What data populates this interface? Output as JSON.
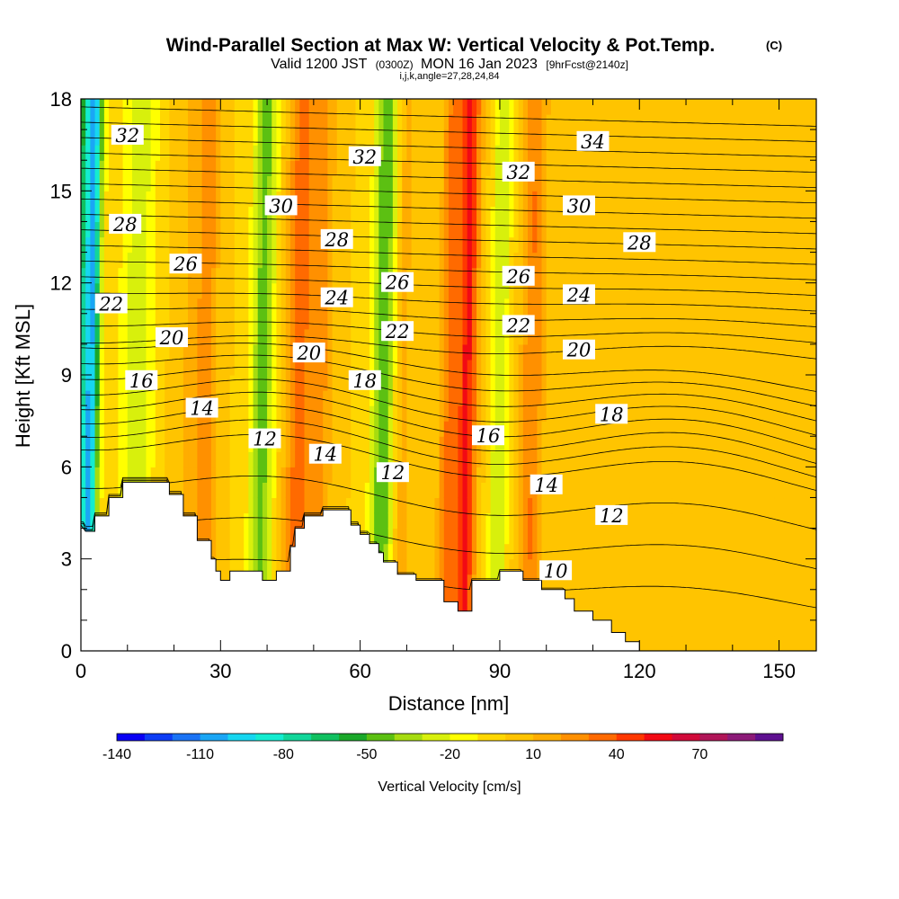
{
  "header": {
    "title": "Wind-Parallel Section at Max W: Vertical Velocity & Pot.Temp.",
    "copyright": "(C)",
    "valid_prefix": "Valid 1200 JST",
    "valid_utc": "(0300Z)",
    "valid_date": "MON 16 Jan 2023",
    "forecast_info": "[9hrFcst@2140z]",
    "grid_info": "i,j,k,angle=27,28,24,84"
  },
  "chart_data": {
    "type": "heatmap",
    "xlabel": "Distance [nm]",
    "ylabel": "Height [Kft MSL]",
    "xlim": [
      0,
      158
    ],
    "ylim": [
      0,
      18
    ],
    "x_ticks": [
      0,
      30,
      60,
      90,
      120,
      150
    ],
    "y_ticks": [
      0,
      3,
      6,
      9,
      12,
      15,
      18
    ],
    "colorbar": {
      "title": "Vertical Velocity [cm/s]",
      "levels": [
        -140,
        -130,
        -120,
        -110,
        -100,
        -90,
        -80,
        -70,
        -60,
        -50,
        -40,
        -30,
        -20,
        -10,
        0,
        10,
        20,
        30,
        40,
        50,
        60,
        70,
        80,
        90
      ],
      "tick_labels": [
        "-140",
        "-110",
        "-80",
        "-50",
        "-20",
        "10",
        "40",
        "70"
      ],
      "tick_values": [
        -140,
        -110,
        -80,
        -50,
        -20,
        10,
        40,
        70
      ],
      "colors": [
        "#0a00f5",
        "#0d3df5",
        "#1a73f5",
        "#1aa6f5",
        "#16d6f0",
        "#14ecd0",
        "#12d69a",
        "#10c060",
        "#1aa82a",
        "#5cc012",
        "#a6dc10",
        "#d8f00c",
        "#ffff00",
        "#ffd700",
        "#ffc400",
        "#ffad00",
        "#ff9000",
        "#ff6a00",
        "#ff3800",
        "#f20a14",
        "#d10a3a",
        "#b01558",
        "#8c1a78",
        "#5e1090"
      ]
    },
    "terrain_kft": [
      [
        0,
        4.1
      ],
      [
        1,
        3.9
      ],
      [
        3,
        3.9
      ],
      [
        3,
        4.4
      ],
      [
        6,
        4.4
      ],
      [
        6,
        5.0
      ],
      [
        9,
        5.0
      ],
      [
        9,
        5.5
      ],
      [
        19,
        5.5
      ],
      [
        19,
        5.1
      ],
      [
        22,
        5.1
      ],
      [
        22,
        4.4
      ],
      [
        25,
        4.4
      ],
      [
        25,
        3.6
      ],
      [
        28,
        3.6
      ],
      [
        28,
        3.0
      ],
      [
        29,
        3.0
      ],
      [
        29,
        2.6
      ],
      [
        30,
        2.6
      ],
      [
        30,
        2.3
      ],
      [
        32,
        2.3
      ],
      [
        32,
        2.6
      ],
      [
        39,
        2.6
      ],
      [
        39,
        2.3
      ],
      [
        42,
        2.3
      ],
      [
        42,
        2.6
      ],
      [
        45,
        2.6
      ],
      [
        45,
        3.4
      ],
      [
        46,
        3.4
      ],
      [
        46,
        4.0
      ],
      [
        48,
        4.0
      ],
      [
        48,
        4.4
      ],
      [
        52,
        4.4
      ],
      [
        52,
        4.6
      ],
      [
        58,
        4.6
      ],
      [
        58,
        4.1
      ],
      [
        60,
        4.1
      ],
      [
        60,
        3.8
      ],
      [
        62,
        3.8
      ],
      [
        62,
        3.5
      ],
      [
        64,
        3.5
      ],
      [
        64,
        3.2
      ],
      [
        65,
        3.2
      ],
      [
        65,
        2.9
      ],
      [
        68,
        2.9
      ],
      [
        68,
        2.5
      ],
      [
        72,
        2.5
      ],
      [
        72,
        2.3
      ],
      [
        78,
        2.3
      ],
      [
        78,
        1.6
      ],
      [
        81,
        1.6
      ],
      [
        81,
        1.3
      ],
      [
        84,
        1.3
      ],
      [
        84,
        2.3
      ],
      [
        90,
        2.3
      ],
      [
        90,
        2.6
      ],
      [
        95,
        2.6
      ],
      [
        95,
        2.3
      ],
      [
        99,
        2.3
      ],
      [
        99,
        2.0
      ],
      [
        104,
        2.0
      ],
      [
        104,
        1.7
      ],
      [
        106,
        1.7
      ],
      [
        106,
        1.3
      ],
      [
        110,
        1.3
      ],
      [
        110,
        1.0
      ],
      [
        114,
        1.0
      ],
      [
        114,
        0.6
      ],
      [
        117,
        0.6
      ],
      [
        117,
        0.3
      ],
      [
        120,
        0.3
      ],
      [
        120,
        0.0
      ]
    ],
    "w_field_bands": [
      {
        "x": 1,
        "w": 2.5,
        "amp": -75
      },
      {
        "x": 2.5,
        "w": 1.4,
        "amp": -45
      },
      {
        "x": 12,
        "w": 4,
        "amp": -25
      },
      {
        "x": 23,
        "w": 3.5,
        "amp": 10
      },
      {
        "x": 27,
        "w": 2.2,
        "amp": 25
      },
      {
        "x": 39,
        "w": 2.5,
        "amp": -45
      },
      {
        "x": 47,
        "w": 3,
        "amp": 35
      },
      {
        "x": 52,
        "w": 2.2,
        "amp": 20
      },
      {
        "x": 65,
        "w": 2.5,
        "amp": -50
      },
      {
        "x": 69,
        "w": 2,
        "amp": 15
      },
      {
        "x": 79,
        "w": 2,
        "amp": 30
      },
      {
        "x": 83,
        "w": 2.2,
        "amp": 52
      },
      {
        "x": 90,
        "w": 2,
        "amp": -30
      },
      {
        "x": 97,
        "w": 2.5,
        "amp": 30
      },
      {
        "x": 108,
        "w": 5,
        "amp": 5
      },
      {
        "x": 140,
        "w": 10,
        "amp": 5
      }
    ],
    "theta_contours": {
      "interval": 1,
      "min": 9,
      "max": 35,
      "labels": [
        {
          "value": "32",
          "x": 10,
          "y": 16.8
        },
        {
          "value": "28",
          "x": 9.5,
          "y": 13.9
        },
        {
          "value": "26",
          "x": 22.5,
          "y": 12.6
        },
        {
          "value": "22",
          "x": 6.5,
          "y": 11.3
        },
        {
          "value": "20",
          "x": 19.5,
          "y": 10.2
        },
        {
          "value": "16",
          "x": 13,
          "y": 8.8
        },
        {
          "value": "14",
          "x": 26,
          "y": 7.9
        },
        {
          "value": "12",
          "x": 39.5,
          "y": 6.9
        },
        {
          "value": "14",
          "x": 52.5,
          "y": 6.4
        },
        {
          "value": "30",
          "x": 43,
          "y": 14.5
        },
        {
          "value": "28",
          "x": 55,
          "y": 13.4
        },
        {
          "value": "24",
          "x": 55,
          "y": 11.5
        },
        {
          "value": "20",
          "x": 49,
          "y": 9.7
        },
        {
          "value": "32",
          "x": 61,
          "y": 16.1
        },
        {
          "value": "26",
          "x": 68,
          "y": 12.0
        },
        {
          "value": "22",
          "x": 68,
          "y": 10.4
        },
        {
          "value": "18",
          "x": 61,
          "y": 8.8
        },
        {
          "value": "12",
          "x": 67,
          "y": 5.8
        },
        {
          "value": "32",
          "x": 94,
          "y": 15.6
        },
        {
          "value": "26",
          "x": 94,
          "y": 12.2
        },
        {
          "value": "22",
          "x": 94,
          "y": 10.6
        },
        {
          "value": "16",
          "x": 87.5,
          "y": 7.0
        },
        {
          "value": "14",
          "x": 100,
          "y": 5.4
        },
        {
          "value": "10",
          "x": 102,
          "y": 2.6
        },
        {
          "value": "34",
          "x": 110,
          "y": 16.6
        },
        {
          "value": "30",
          "x": 107,
          "y": 14.5
        },
        {
          "value": "28",
          "x": 120,
          "y": 13.3
        },
        {
          "value": "24",
          "x": 107,
          "y": 11.6
        },
        {
          "value": "20",
          "x": 107,
          "y": 9.8
        },
        {
          "value": "18",
          "x": 114,
          "y": 7.7
        },
        {
          "value": "12",
          "x": 114,
          "y": 4.4
        }
      ]
    }
  }
}
